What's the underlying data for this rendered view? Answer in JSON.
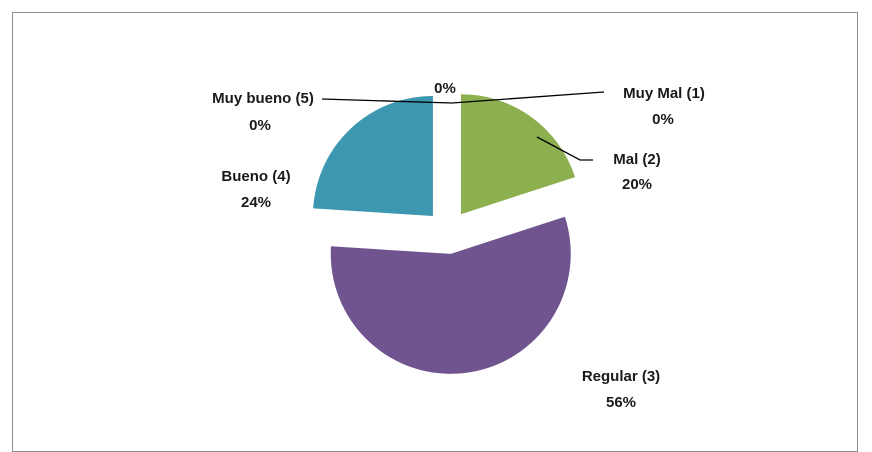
{
  "chart_data": {
    "type": "pie",
    "title": "",
    "legend": "none",
    "slices": [
      {
        "label": "Muy Mal (1)",
        "value": 0,
        "percent_label": "0%",
        "color": "#4f81bd"
      },
      {
        "label": "Mal (2)",
        "value": 20,
        "percent_label": "20%",
        "color": "#8caf4f"
      },
      {
        "label": "Regular (3)",
        "value": 56,
        "percent_label": "56%",
        "color": "#70548f"
      },
      {
        "label": "Bueno (4)",
        "value": 24,
        "percent_label": "24%",
        "color": "#3e97b0"
      },
      {
        "label": "Muy bueno (5)",
        "value": 0,
        "percent_label": "0%",
        "color": "#f79646"
      }
    ],
    "extra_labels": [
      {
        "text": "0%"
      }
    ]
  }
}
